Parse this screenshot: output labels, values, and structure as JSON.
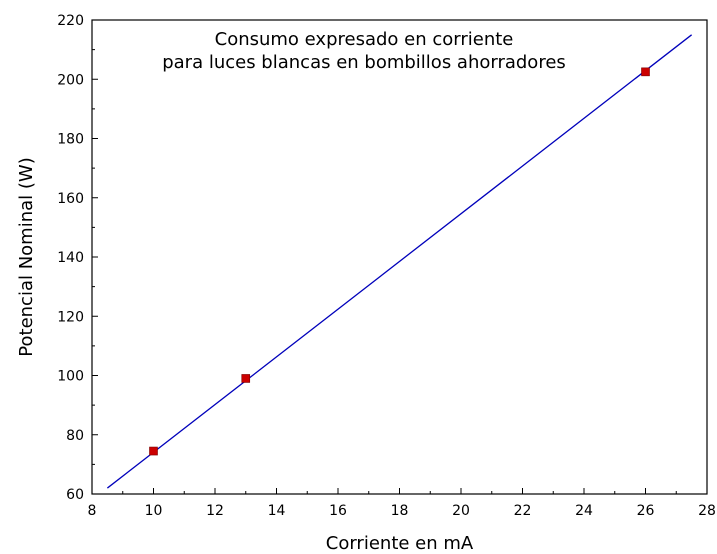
{
  "chart_data": {
    "type": "scatter",
    "title": "",
    "annotation": [
      "Consumo expresado en corriente",
      "para luces blancas en bombillos ahorradores"
    ],
    "xlabel": "Corriente en mA",
    "ylabel": "Potencial Nominal (W)",
    "xlim": [
      8,
      28
    ],
    "ylim": [
      60,
      220
    ],
    "xticks": [
      8,
      10,
      12,
      14,
      16,
      18,
      20,
      22,
      24,
      26,
      28
    ],
    "yticks": [
      60,
      80,
      100,
      120,
      140,
      160,
      180,
      200,
      220
    ],
    "grid": false,
    "legend": "none",
    "series": [
      {
        "type": "scatter",
        "x": [
          10,
          13,
          26
        ],
        "y": [
          74.5,
          99,
          202.5
        ],
        "color": "#cc0000"
      },
      {
        "type": "line",
        "x": [
          8.5,
          27.5
        ],
        "y": [
          62,
          215
        ],
        "color": "#0000bb"
      }
    ]
  }
}
